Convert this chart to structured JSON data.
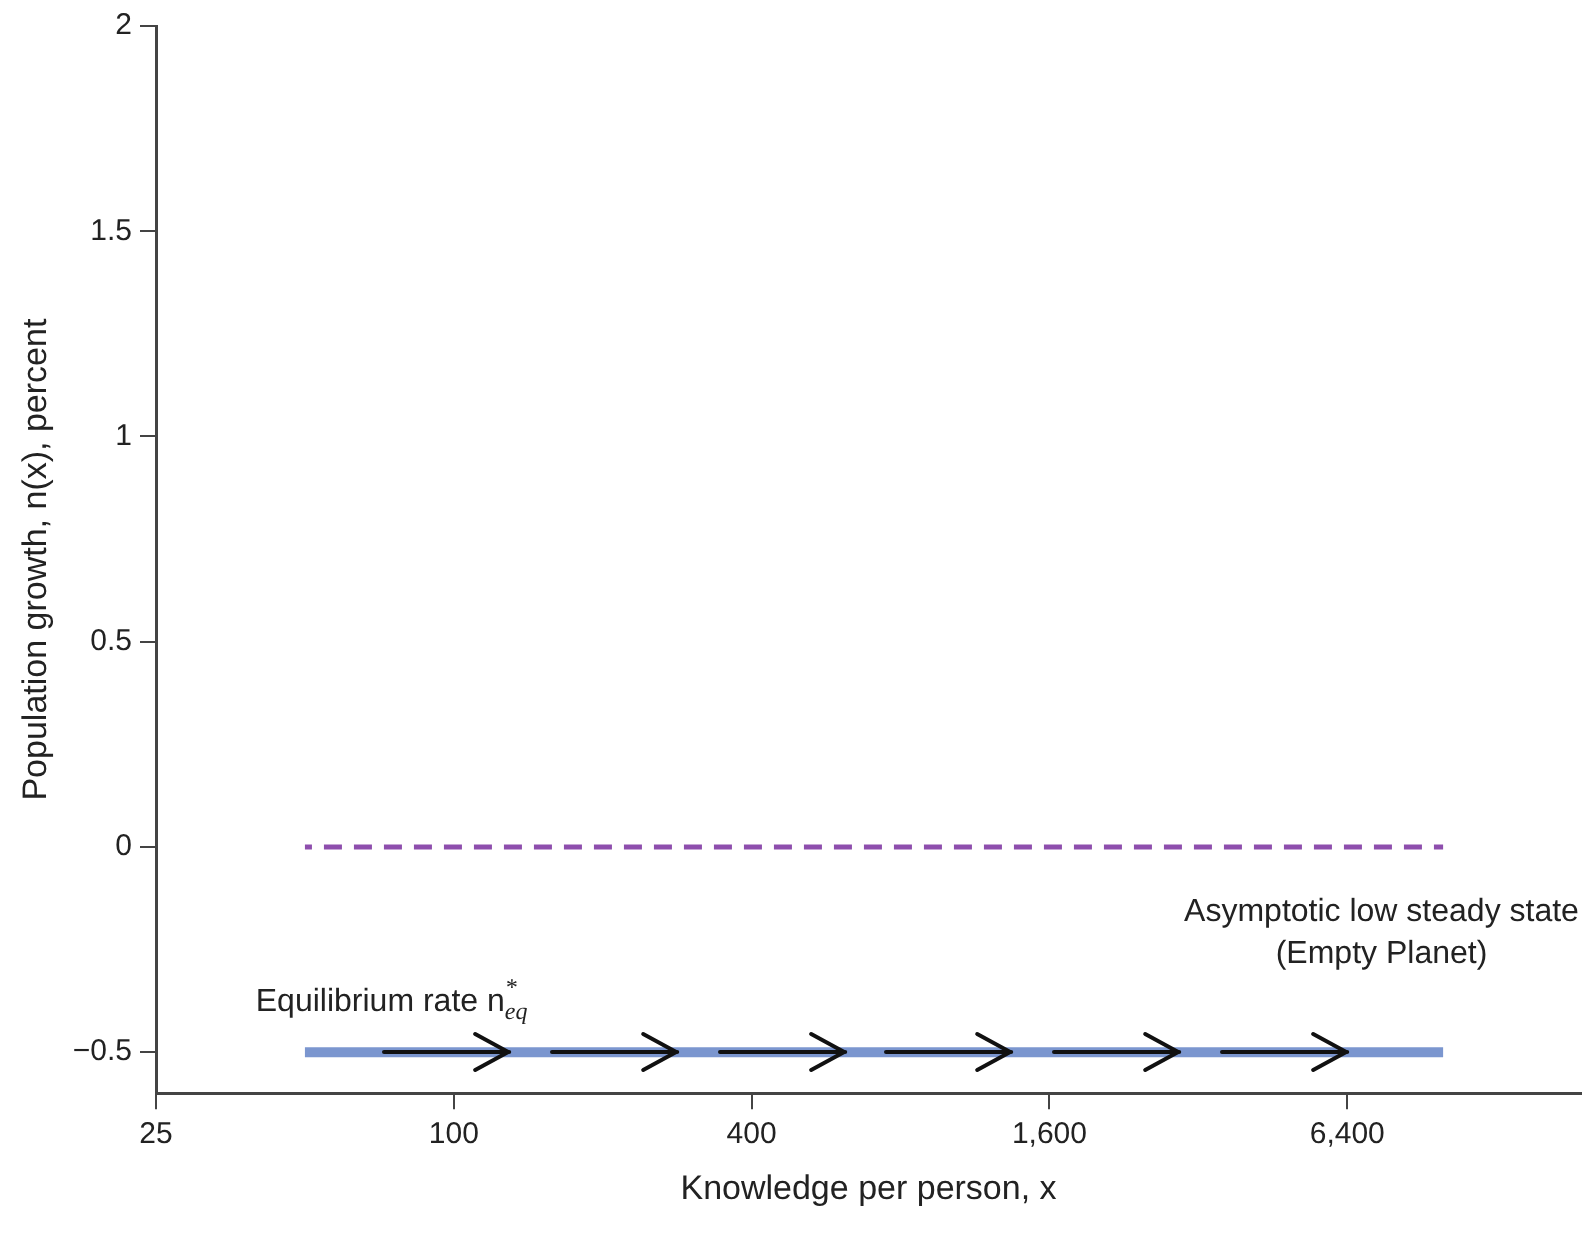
{
  "chart_data": {
    "type": "line",
    "xlabel": "Knowledge per person, x",
    "ylabel": "Population growth, n(x), percent",
    "log": "x",
    "grid": false,
    "legend": false,
    "line_style": "solid",
    "marker": "none",
    "xlim": [
      25,
      19000
    ],
    "xticks": [
      25,
      100,
      400,
      {
        "value": 1600,
        "label": "1,600"
      },
      {
        "value": 6400,
        "label": "6,400"
      }
    ],
    "ylim": [
      -0.6,
      2
    ],
    "yticks": [
      {
        "value": -0.5,
        "label": "−0.5"
      },
      0,
      0.5,
      1,
      1.5,
      2
    ],
    "x": [
      50,
      10000
    ],
    "series": [
      {
        "values": [
          0,
          0
        ],
        "color": "#8e4ead",
        "line_style": "dashed"
      },
      {
        "values": [
          -0.5,
          -0.5
        ],
        "color": "#7b96cf"
      }
    ],
    "annotations": [
      "Asymptotic low steady state\n(Empty Planet)",
      "Equilibrium rate n$^{*}$$_{eq}$"
    ]
  }
}
